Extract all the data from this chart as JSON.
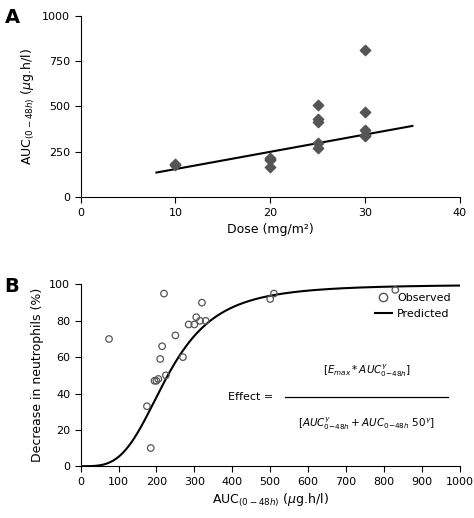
{
  "panel_A": {
    "scatter_x": [
      10,
      10,
      20,
      20,
      20,
      20,
      25,
      25,
      25,
      25,
      25,
      30,
      30,
      30,
      30,
      30
    ],
    "scatter_y": [
      185,
      175,
      215,
      210,
      205,
      165,
      510,
      430,
      415,
      300,
      270,
      810,
      470,
      370,
      345,
      335
    ],
    "line_x": [
      8,
      35
    ],
    "line_slope": 9.5,
    "line_intercept": 60,
    "xlabel": "Dose (mg/m²)",
    "xlim": [
      0,
      40
    ],
    "ylim": [
      0,
      1000
    ],
    "xticks": [
      0,
      10,
      20,
      30,
      40
    ],
    "yticks": [
      0,
      250,
      500,
      750,
      1000
    ],
    "marker_color": "#555555",
    "line_color": "#000000",
    "label": "A"
  },
  "panel_B": {
    "scatter_x": [
      75,
      175,
      185,
      195,
      200,
      205,
      210,
      215,
      220,
      225,
      250,
      270,
      285,
      300,
      305,
      315,
      320,
      330,
      500,
      510,
      830
    ],
    "scatter_y": [
      70,
      33,
      10,
      47,
      47,
      48,
      59,
      66,
      95,
      50,
      72,
      60,
      78,
      78,
      82,
      80,
      90,
      80,
      92,
      95,
      97
    ],
    "emax": 100,
    "ec50": 230,
    "gamma": 3.5,
    "xlim": [
      0,
      1000
    ],
    "ylim": [
      0,
      100
    ],
    "xticks": [
      0,
      100,
      200,
      300,
      400,
      500,
      600,
      700,
      800,
      900,
      1000
    ],
    "yticks": [
      0,
      20,
      40,
      60,
      80,
      100
    ],
    "marker_color": "#555555",
    "line_color": "#000000",
    "label": "B",
    "legend_observed": "Observed",
    "legend_predicted": "Predicted"
  }
}
